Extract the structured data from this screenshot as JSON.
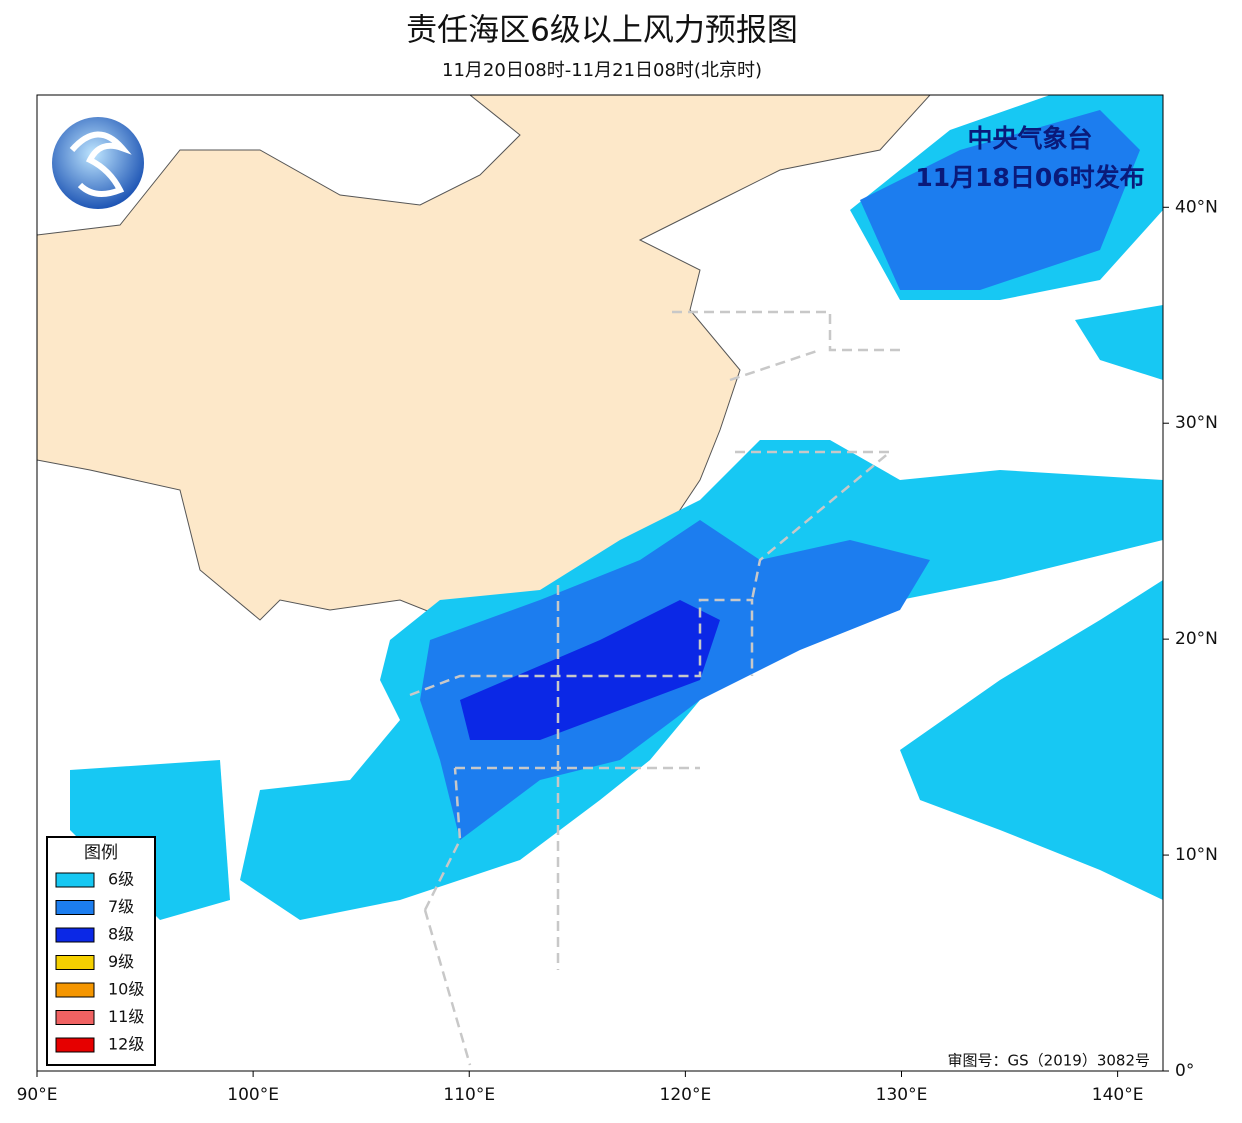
{
  "title": "责任海区6级以上风力预报图",
  "subtitle": "11月20日08时-11月21日08时(北京时)",
  "issuer": {
    "agency": "中央气象台",
    "issued": "11月18日06时发布"
  },
  "legend": {
    "title": "图例",
    "items": [
      {
        "label": "6级",
        "color": "#17c8f3"
      },
      {
        "label": "7级",
        "color": "#1c7def"
      },
      {
        "label": "8级",
        "color": "#0b28e6"
      },
      {
        "label": "9级",
        "color": "#f5d000"
      },
      {
        "label": "10级",
        "color": "#f59600"
      },
      {
        "label": "11级",
        "color": "#f06262"
      },
      {
        "label": "12级",
        "color": "#e60000"
      }
    ]
  },
  "map": {
    "xlim": [
      90,
      142.1
    ],
    "ylim": [
      0,
      45.2
    ],
    "xticks": [
      {
        "value": 90,
        "label": "90°E"
      },
      {
        "value": 100,
        "label": "100°E"
      },
      {
        "value": 110,
        "label": "110°E"
      },
      {
        "value": 120,
        "label": "120°E"
      },
      {
        "value": 130,
        "label": "130°E"
      },
      {
        "value": 140,
        "label": "140°E"
      }
    ],
    "yticks": [
      {
        "value": 0,
        "label": "0°"
      },
      {
        "value": 10,
        "label": "10°N"
      },
      {
        "value": 20,
        "label": "20°N"
      },
      {
        "value": 30,
        "label": "30°N"
      },
      {
        "value": 40,
        "label": "40°N"
      }
    ]
  },
  "approval": "审图号：GS（2019）3082号"
}
